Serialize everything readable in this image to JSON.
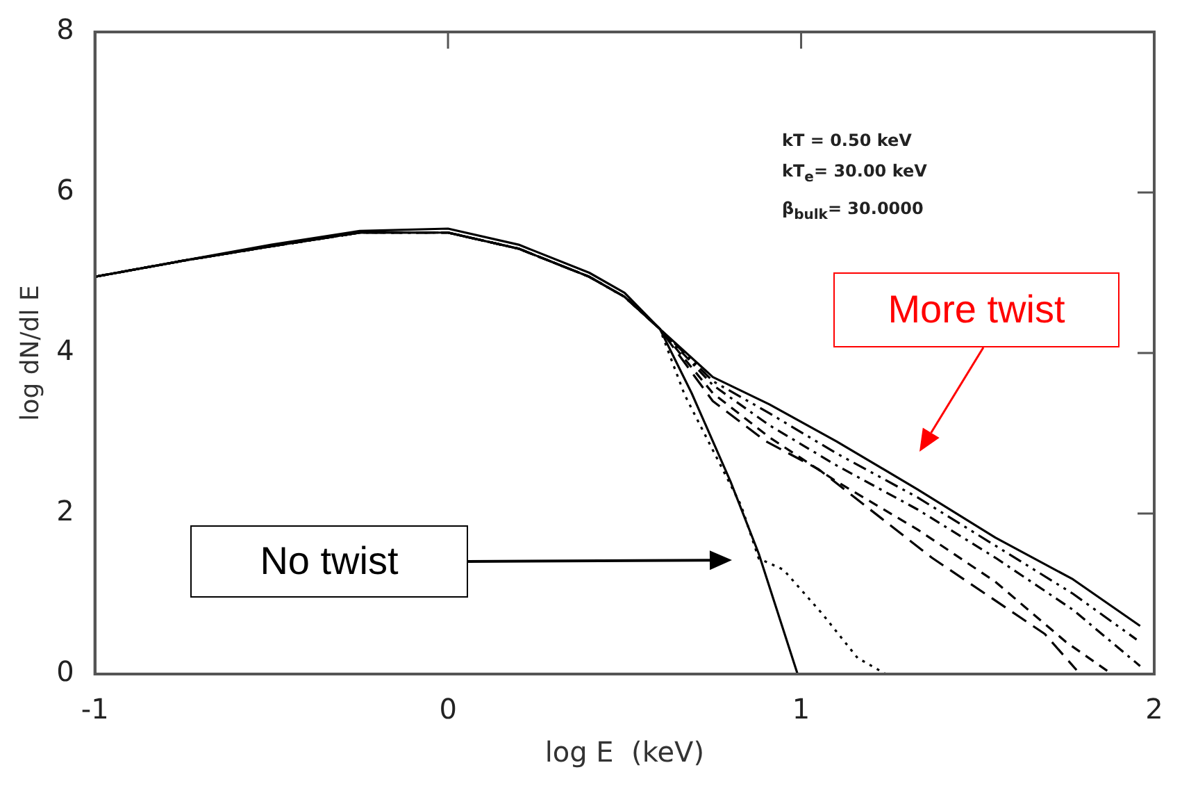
{
  "chart_data": {
    "type": "line",
    "xlabel": "log E  (keV)",
    "ylabel": "log dN/dl E",
    "xlim": [
      -1,
      2
    ],
    "xticks": [
      -1,
      0,
      1,
      2
    ],
    "ylim": [
      0,
      8
    ],
    "yticks": [
      0,
      2,
      4,
      6,
      8
    ],
    "grid": false,
    "legend": false,
    "marker": "none",
    "annotations": [
      "kT = 0.50 keV",
      "kT$_{e}$= 30.00 keV",
      "β$_{bulk}$= 30.0000",
      "More twist",
      "No twist"
    ],
    "series": [
      {
        "color": "#000000",
        "line_style": "solid",
        "x": [
          -1,
          -0.75,
          -0.5,
          -0.25,
          0,
          0.2,
          0.4,
          0.5,
          0.6,
          0.69,
          0.8,
          0.88,
          0.99
        ],
        "values": [
          4.95,
          5.15,
          5.33,
          5.5,
          5.5,
          5.3,
          4.95,
          4.7,
          4.3,
          3.5,
          2.4,
          1.5,
          0
        ]
      },
      {
        "color": "#000000",
        "line_style": "dotted",
        "x": [
          -1,
          -0.75,
          -0.5,
          -0.25,
          0,
          0.2,
          0.4,
          0.5,
          0.6,
          0.67,
          0.83,
          0.88,
          0.95,
          1.06,
          1.16,
          1.24
        ],
        "values": [
          4.95,
          5.15,
          5.33,
          5.5,
          5.5,
          5.3,
          4.95,
          4.7,
          4.3,
          3.48,
          2.1,
          1.44,
          1.3,
          0.75,
          0.2,
          0
        ]
      },
      {
        "color": "#000000",
        "line_style": "solid",
        "x": [
          -1,
          -0.75,
          -0.5,
          -0.25,
          0,
          0.2,
          0.4,
          0.5,
          0.6,
          0.75,
          0.91,
          1.1,
          1.33,
          1.55,
          1.77,
          1.96
        ],
        "values": [
          4.95,
          5.15,
          5.35,
          5.52,
          5.55,
          5.35,
          5.0,
          4.75,
          4.3,
          3.7,
          3.36,
          2.9,
          2.3,
          1.7,
          1.18,
          0.6
        ]
      },
      {
        "color": "#000000",
        "line_style": "dashed",
        "x": [
          -1,
          -0.75,
          -0.5,
          -0.25,
          0,
          0.2,
          0.4,
          0.5,
          0.6,
          0.75,
          0.91,
          1.1,
          1.33,
          1.55,
          1.77,
          1.95
        ],
        "values": [
          4.95,
          5.15,
          5.33,
          5.5,
          5.5,
          5.3,
          4.95,
          4.7,
          4.3,
          3.65,
          3.25,
          2.75,
          2.2,
          1.6,
          1.0,
          0.43
        ]
      },
      {
        "color": "#000000",
        "line_style": "dashed",
        "x": [
          -1,
          -0.75,
          -0.5,
          -0.25,
          0,
          0.2,
          0.4,
          0.5,
          0.6,
          0.75,
          0.91,
          1.1,
          1.33,
          1.55,
          1.77,
          1.96
        ],
        "values": [
          4.95,
          5.15,
          5.33,
          5.5,
          5.5,
          5.3,
          4.95,
          4.7,
          4.3,
          3.6,
          3.1,
          2.6,
          2.05,
          1.45,
          0.8,
          0.1
        ]
      },
      {
        "color": "#000000",
        "line_style": "dashed",
        "x": [
          -1,
          -0.75,
          -0.5,
          -0.25,
          0,
          0.2,
          0.4,
          0.5,
          0.6,
          0.75,
          0.91,
          1.1,
          1.33,
          1.55,
          1.75,
          1.88
        ],
        "values": [
          4.95,
          5.15,
          5.33,
          5.5,
          5.5,
          5.3,
          4.95,
          4.7,
          4.3,
          3.5,
          2.95,
          2.4,
          1.8,
          1.15,
          0.4,
          0
        ]
      },
      {
        "color": "#000000",
        "line_style": "dashed",
        "x": [
          -1,
          -0.75,
          -0.5,
          -0.25,
          0,
          0.2,
          0.4,
          0.5,
          0.6,
          0.75,
          0.9,
          1.05,
          1.37,
          1.69,
          1.78
        ],
        "values": [
          4.95,
          5.15,
          5.33,
          5.5,
          5.5,
          5.3,
          4.95,
          4.7,
          4.3,
          3.4,
          2.9,
          2.55,
          1.45,
          0.5,
          0.05
        ]
      }
    ]
  }
}
